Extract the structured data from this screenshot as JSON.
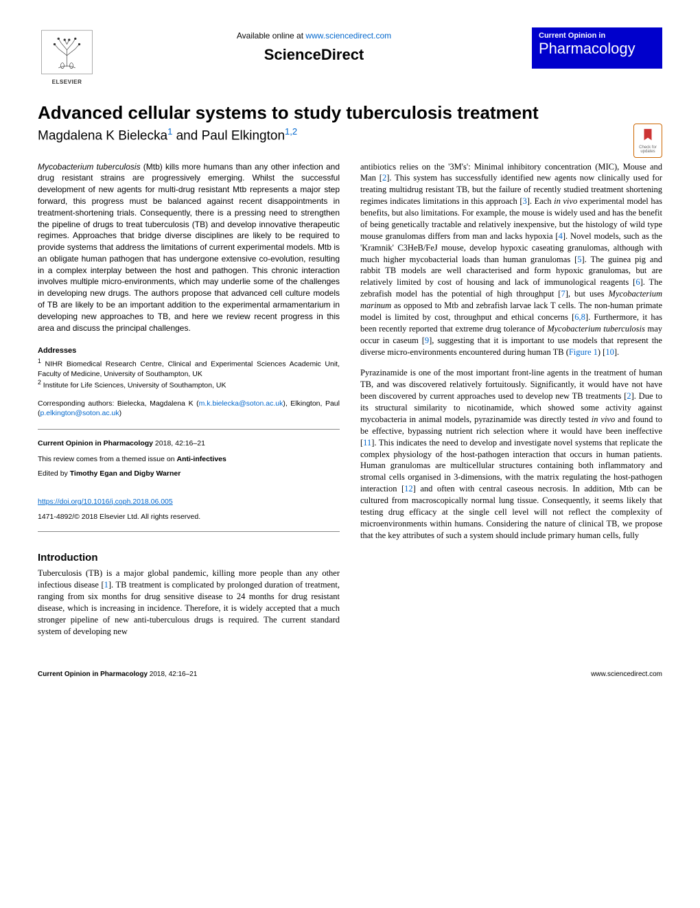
{
  "header": {
    "online_prefix": "Available online at ",
    "online_url": "www.sciencedirect.com",
    "brand": "ScienceDirect",
    "publisher_name": "ELSEVIER",
    "journal_badge_top": "Current Opinion in",
    "journal_badge_main": "Pharmacology"
  },
  "article": {
    "title": "Advanced cellular systems to study tuberculosis treatment",
    "authors_html": "Magdalena K Bielecka",
    "author1_sup": "1",
    "authors_and": " and Paul Elkington",
    "author2_sup": "1,2",
    "check_updates_label": "Check for updates"
  },
  "abstract": "Mycobacterium tuberculosis (Mtb) kills more humans than any other infection and drug resistant strains are progressively emerging. Whilst the successful development of new agents for multi-drug resistant Mtb represents a major step forward, this progress must be balanced against recent disappointments in treatment-shortening trials. Consequently, there is a pressing need to strengthen the pipeline of drugs to treat tuberculosis (TB) and develop innovative therapeutic regimes. Approaches that bridge diverse disciplines are likely to be required to provide systems that address the limitations of current experimental models. Mtb is an obligate human pathogen that has undergone extensive co-evolution, resulting in a complex interplay between the host and pathogen. This chronic interaction involves multiple micro-environments, which may underlie some of the challenges in developing new drugs. The authors propose that advanced cell culture models of TB are likely to be an important addition to the experimental armamentarium in developing new approaches to TB, and here we review recent progress in this area and discuss the principal challenges.",
  "addresses": {
    "heading": "Addresses",
    "line1_sup": "1",
    "line1": " NIHR Biomedical Research Centre, Clinical and Experimental Sciences Academic Unit, Faculty of Medicine, University of Southampton, UK",
    "line2_sup": "2",
    "line2": " Institute for Life Sciences, University of Southampton, UK"
  },
  "corresponding": {
    "prefix": "Corresponding authors: Bielecka, Magdalena K (",
    "email1": "m.k.bielecka@soton.ac.uk",
    "mid": "), Elkington, Paul (",
    "email2": "p.elkington@soton.ac.uk",
    "suffix": ")"
  },
  "meta": {
    "citation_journal": "Current Opinion in Pharmacology",
    "citation_rest": " 2018, 42:16–21",
    "themed_prefix": "This review comes from a themed issue on ",
    "themed_topic": "Anti-infectives",
    "edited_prefix": "Edited by ",
    "editors": "Timothy Egan and Digby Warner",
    "doi": "https://doi.org/10.1016/j.coph.2018.06.005",
    "copyright": "1471-4892/© 2018 Elsevier Ltd. All rights reserved."
  },
  "intro": {
    "heading": "Introduction",
    "p1_a": "Tuberculosis (TB) is a major global pandemic, killing more people than any other infectious disease [",
    "p1_r1": "1",
    "p1_b": "]. TB treatment is complicated by prolonged duration of treatment, ranging from six months for drug sensitive disease to 24 months for drug resistant disease, which is increasing in incidence. Therefore, it is widely accepted that a much stronger pipeline of new anti-tuberculous drugs is required. The current standard system of developing new"
  },
  "right": {
    "p1_a": "antibiotics relies on the '3M's': Minimal inhibitory concentration (MIC), Mouse and Man [",
    "p1_r2": "2",
    "p1_b": "]. This system has successfully identified new agents now clinically used for treating multidrug resistant TB, but the failure of recently studied treatment shortening regimes indicates limitations in this approach [",
    "p1_r3": "3",
    "p1_c": "]. Each ",
    "p1_invivo1": "in vivo",
    "p1_d": " experimental model has benefits, but also limitations. For example, the mouse is widely used and has the benefit of being genetically tractable and relatively inexpensive, but the histology of wild type mouse granulomas differs from man and lacks hypoxia [",
    "p1_r4": "4",
    "p1_e": "]. Novel models, such as the 'Kramnik' C3HeB/FeJ mouse, develop hypoxic caseating granulomas, although with much higher mycobacterial loads than human granulomas [",
    "p1_r5": "5",
    "p1_f": "]. The guinea pig and rabbit TB models are well characterised and form hypoxic granulomas, but are relatively limited by cost of housing and lack of immunological reagents [",
    "p1_r6": "6",
    "p1_g": "]. The zebrafish model has the potential of high throughput [",
    "p1_r7": "7",
    "p1_h": "], but uses ",
    "p1_marinum": "Mycobacterium marinum",
    "p1_i": " as opposed to Mtb and zebrafish larvae lack T cells. The non-human primate model is limited by cost, throughput and ethical concerns [",
    "p1_r68": "6,8",
    "p1_j": "]. Furthermore, it has been recently reported that extreme drug tolerance of ",
    "p1_mtb": "Mycobacterium tuberculosis",
    "p1_k": " may occur in caseum [",
    "p1_r9": "9",
    "p1_l": "], suggesting that it is important to use models that represent the diverse micro-environments encountered during human TB (",
    "p1_fig": "Figure 1",
    "p1_m": ") [",
    "p1_r10": "10",
    "p1_n": "].",
    "p2_a": "Pyrazinamide is one of the most important front-line agents in the treatment of human TB, and was discovered relatively fortuitously. Significantly, it would have not have been discovered by current approaches used to develop new TB treatments [",
    "p2_r2": "2",
    "p2_b": "]. Due to its structural similarity to nicotinamide, which showed some activity against mycobacteria in animal models, pyrazinamide was directly tested ",
    "p2_invivo": "in vivo",
    "p2_c": " and found to be effective, bypassing nutrient rich selection where it would have been ineffective [",
    "p2_r11": "11",
    "p2_d": "]. This indicates the need to develop and investigate novel systems that replicate the complex physiology of the host-pathogen interaction that occurs in human patients. Human granulomas are multicellular structures containing both inflammatory and stromal cells organised in 3-dimensions, with the matrix regulating the host-pathogen interaction [",
    "p2_r12": "12",
    "p2_e": "] and often with central caseous necrosis. In addition, Mtb can be cultured from macroscopically normal lung tissue. Consequently, it seems likely that testing drug efficacy at the single cell level will not reflect the complexity of microenvironments within humans. Considering the nature of clinical TB, we propose that the key attributes of such a system should include primary human cells, fully"
  },
  "footer": {
    "left_strong": "Current Opinion in Pharmacology",
    "left_rest": " 2018, 42:16–21",
    "right": "www.sciencedirect.com"
  },
  "colors": {
    "link": "#0066cc",
    "badge_bg": "#0000cc",
    "badge_text": "#ffffff",
    "check_border": "#cc6600",
    "check_fill": "#cc3333",
    "text": "#000000",
    "rule": "#888888"
  }
}
